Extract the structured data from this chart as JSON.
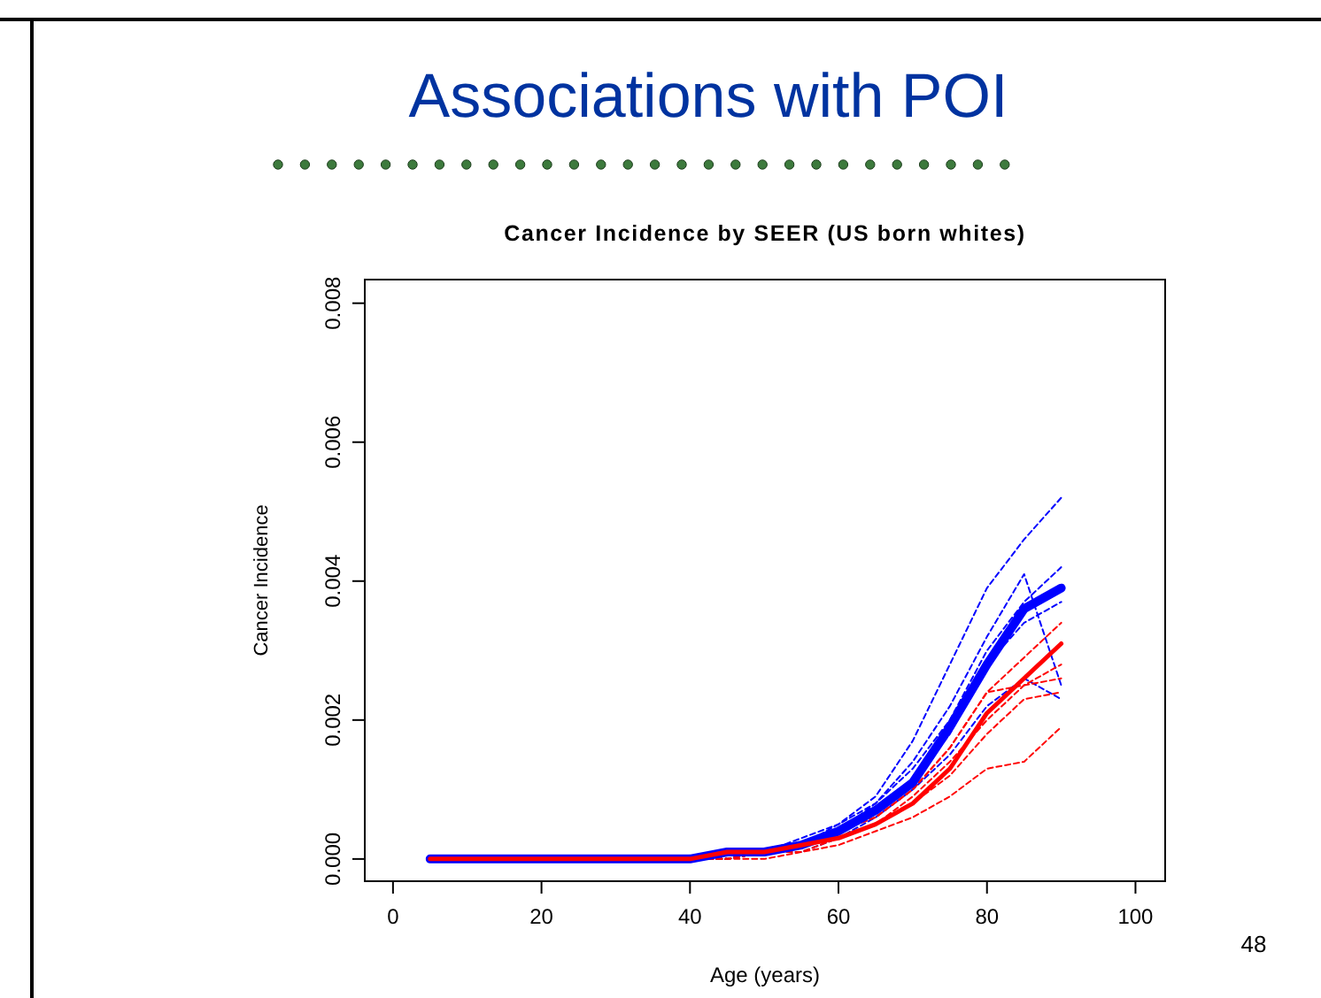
{
  "chart_data": {
    "type": "line",
    "title": "Associations with POI",
    "subtitle": "Cancer Incidence by SEER (US born whites)",
    "xlabel": "Age (years)",
    "ylabel": "Cancer Incidence",
    "annotations": [
      "48"
    ],
    "xlim": [
      -3.8,
      104
    ],
    "ylim": [
      -0.00032,
      0.00834
    ],
    "xticks": [
      0,
      20,
      40,
      60,
      80,
      100
    ],
    "yticks": [
      {
        "value": 0,
        "label": "0.000"
      },
      {
        "value": 0.002,
        "label": "0.002"
      },
      {
        "value": 0.004,
        "label": "0.004"
      },
      {
        "value": 0.006,
        "label": "0.006"
      },
      {
        "value": 0.008,
        "label": "0.008"
      }
    ],
    "grid": false,
    "series": [
      {
        "color": "#0000ff",
        "line_style": "dashed",
        "x": [
          40,
          45,
          50,
          55,
          60,
          65,
          70,
          75,
          80,
          85,
          90
        ],
        "values": [
          0,
          0.0001,
          0.0001,
          0.0003,
          0.0005,
          0.0009,
          0.0017,
          0.0028,
          0.0039,
          0.0046,
          0.0052
        ]
      },
      {
        "color": "#0000ff",
        "line_style": "dashed",
        "x": [
          40,
          45,
          50,
          55,
          60,
          65,
          70,
          75,
          80,
          85,
          90
        ],
        "values": [
          0,
          0,
          0.0001,
          0.0002,
          0.0004,
          0.0008,
          0.0014,
          0.0022,
          0.0032,
          0.0041,
          0.0025
        ]
      },
      {
        "color": "#0000ff",
        "line_style": "dashed",
        "x": [
          40,
          45,
          50,
          55,
          60,
          65,
          70,
          75,
          80,
          85,
          90
        ],
        "values": [
          0,
          0,
          0.0001,
          0.0002,
          0.0005,
          0.0008,
          0.0013,
          0.002,
          0.003,
          0.0037,
          0.0042
        ]
      },
      {
        "color": "#0000ff",
        "line_style": "dashed",
        "x": [
          40,
          45,
          50,
          55,
          60,
          65,
          70,
          75,
          80,
          85,
          90
        ],
        "values": [
          0,
          0,
          0.0001,
          0.0001,
          0.0003,
          0.0006,
          0.001,
          0.0015,
          0.0022,
          0.0026,
          0.0023
        ]
      },
      {
        "color": "#0000ff",
        "line_style": "dashed",
        "x": [
          40,
          45,
          50,
          55,
          60,
          65,
          70,
          75,
          80,
          85,
          90
        ],
        "values": [
          0,
          0,
          0.0001,
          0.0002,
          0.0004,
          0.0007,
          0.0011,
          0.0018,
          0.0028,
          0.0034,
          0.0037
        ]
      },
      {
        "color": "#ff0000",
        "line_style": "dashed",
        "x": [
          40,
          45,
          50,
          55,
          60,
          65,
          70,
          75,
          80,
          85,
          90
        ],
        "values": [
          0,
          0,
          0,
          0.0001,
          0.0002,
          0.0004,
          0.0006,
          0.0009,
          0.0013,
          0.0014,
          0.0019
        ]
      },
      {
        "color": "#ff0000",
        "line_style": "dashed",
        "x": [
          40,
          45,
          50,
          55,
          60,
          65,
          70,
          75,
          80,
          85,
          90
        ],
        "values": [
          0,
          0,
          0.0001,
          0.0001,
          0.0003,
          0.0005,
          0.0008,
          0.0012,
          0.0018,
          0.0023,
          0.0024
        ]
      },
      {
        "color": "#ff0000",
        "line_style": "dashed",
        "x": [
          40,
          45,
          50,
          55,
          60,
          65,
          70,
          75,
          80,
          85,
          90
        ],
        "values": [
          0,
          0,
          0.0001,
          0.0002,
          0.0004,
          0.0006,
          0.001,
          0.0016,
          0.0024,
          0.0029,
          0.0034
        ]
      },
      {
        "color": "#ff0000",
        "line_style": "dashed",
        "x": [
          40,
          45,
          50,
          55,
          60,
          65,
          70,
          75,
          80,
          85,
          90
        ],
        "values": [
          0,
          0,
          0.0001,
          0.0002,
          0.0003,
          0.0005,
          0.0009,
          0.0014,
          0.002,
          0.0025,
          0.0028
        ]
      },
      {
        "color": "#ff0000",
        "line_style": "dashed",
        "x": [
          40,
          45,
          50,
          55,
          60,
          65,
          70,
          75,
          80,
          85,
          90
        ],
        "values": [
          0,
          0,
          0.0001,
          0.0002,
          0.0004,
          0.0006,
          0.001,
          0.0016,
          0.0024,
          0.0025,
          0.0026
        ]
      },
      {
        "color": "#0000ff",
        "line_style": "solid",
        "x": [
          5,
          10,
          15,
          20,
          25,
          30,
          35,
          40,
          45,
          50,
          55,
          60,
          65,
          70,
          75,
          80,
          85,
          90
        ],
        "values": [
          0,
          0,
          0,
          0,
          0,
          0,
          0,
          0,
          0.0001,
          0.0001,
          0.0002,
          0.0004,
          0.0007,
          0.0011,
          0.0019,
          0.0028,
          0.0036,
          0.0039
        ]
      },
      {
        "color": "#ff0000",
        "line_style": "solid",
        "x": [
          5,
          10,
          15,
          20,
          25,
          30,
          35,
          40,
          45,
          50,
          55,
          60,
          65,
          70,
          75,
          80,
          85,
          90
        ],
        "values": [
          0,
          0,
          0,
          0,
          0,
          0,
          0,
          0,
          0.0001,
          0.0001,
          0.0002,
          0.0003,
          0.0005,
          0.0008,
          0.0013,
          0.0021,
          0.0026,
          0.0031
        ]
      }
    ]
  }
}
